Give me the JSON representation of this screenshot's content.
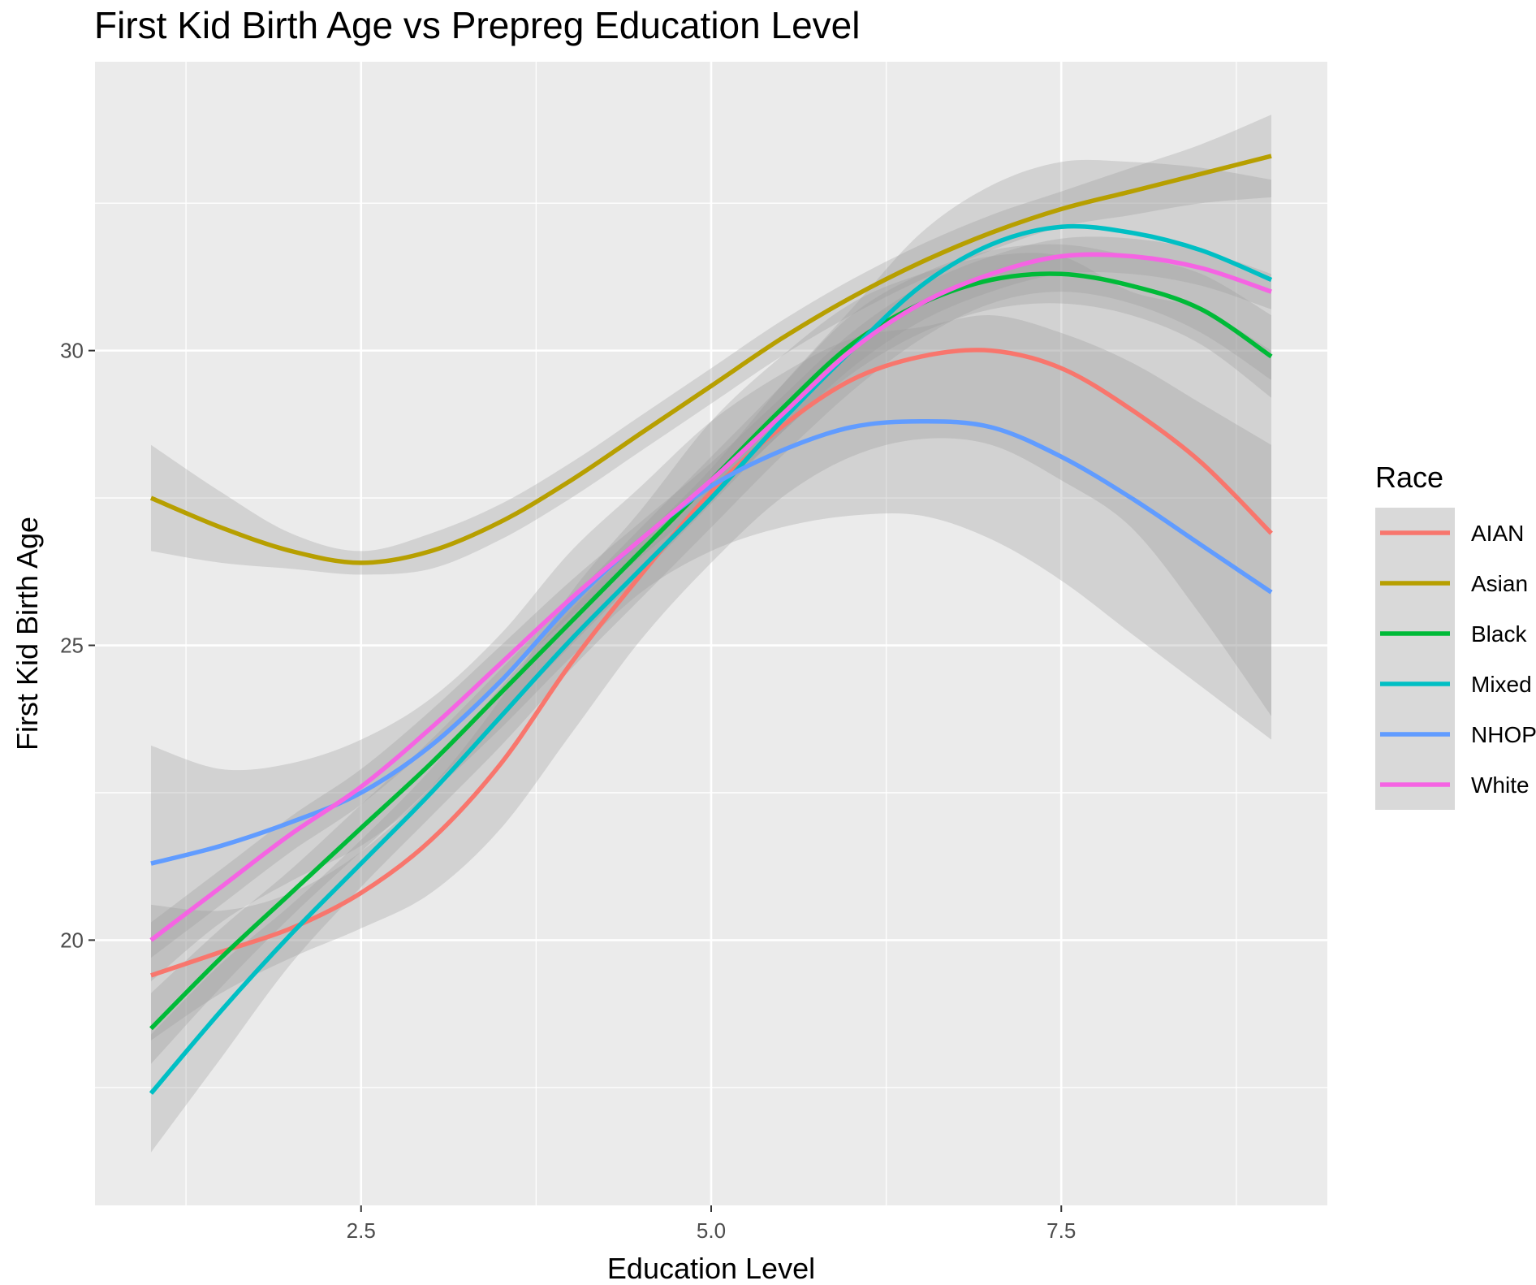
{
  "chart_data": {
    "type": "line",
    "title": "First Kid Birth Age vs Prepreg Education Level",
    "xlabel": "Education Level",
    "ylabel": "First Kid Birth Age",
    "xlim": [
      0.6,
      9.4
    ],
    "ylim": [
      15.5,
      34.9
    ],
    "x_ticks": [
      2.5,
      5.0,
      7.5
    ],
    "x_tick_labels": [
      "2.5",
      "5.0",
      "7.5"
    ],
    "y_ticks": [
      20,
      25,
      30
    ],
    "y_tick_labels": [
      "20",
      "25",
      "30"
    ],
    "x_minor": [
      1.25,
      3.75,
      6.25,
      8.75
    ],
    "y_minor": [
      17.5,
      22.5,
      27.5,
      32.5
    ],
    "grid": true,
    "legend_title": "Race",
    "legend_position": "right",
    "x": [
      1,
      1.5,
      2,
      2.5,
      3,
      3.5,
      4,
      4.5,
      5,
      5.5,
      6,
      6.5,
      7,
      7.5,
      8,
      8.5,
      9
    ],
    "series": [
      {
        "name": "AIAN",
        "color": "#F8766D",
        "values": [
          19.4,
          19.8,
          20.2,
          20.8,
          21.7,
          23.0,
          24.7,
          26.2,
          27.6,
          28.7,
          29.5,
          29.9,
          30.0,
          29.7,
          29.0,
          28.1,
          26.9
        ],
        "lower": [
          18.3,
          19.1,
          19.7,
          20.2,
          20.8,
          21.9,
          23.5,
          25.1,
          26.4,
          27.5,
          28.2,
          28.5,
          28.4,
          27.8,
          27.0,
          25.5,
          23.8
        ],
        "upper": [
          20.6,
          20.5,
          20.8,
          21.5,
          22.6,
          24.1,
          25.9,
          27.3,
          28.8,
          29.9,
          30.8,
          31.3,
          31.6,
          31.6,
          31.0,
          30.7,
          30.0
        ]
      },
      {
        "name": "Asian",
        "color": "#B79F00",
        "values": [
          27.5,
          27.0,
          26.6,
          26.4,
          26.6,
          27.1,
          27.8,
          28.6,
          29.4,
          30.2,
          30.9,
          31.5,
          32.0,
          32.4,
          32.7,
          33.0,
          33.3
        ],
        "lower": [
          26.6,
          26.4,
          26.3,
          26.2,
          26.3,
          26.8,
          27.5,
          28.3,
          29.1,
          29.9,
          30.6,
          31.2,
          31.7,
          32.1,
          32.3,
          32.5,
          32.6
        ],
        "upper": [
          28.4,
          27.6,
          26.9,
          26.6,
          26.9,
          27.4,
          28.1,
          28.9,
          29.7,
          30.5,
          31.2,
          31.8,
          32.3,
          32.7,
          33.1,
          33.5,
          34.0
        ]
      },
      {
        "name": "Black",
        "color": "#00BA38",
        "values": [
          18.5,
          19.7,
          20.8,
          21.9,
          23.0,
          24.2,
          25.4,
          26.6,
          27.8,
          29.0,
          30.1,
          30.8,
          31.2,
          31.3,
          31.1,
          30.7,
          29.9
        ],
        "lower": [
          17.9,
          19.2,
          20.4,
          21.5,
          22.6,
          23.8,
          25.0,
          26.2,
          27.4,
          28.6,
          29.6,
          30.3,
          30.7,
          30.8,
          30.6,
          30.1,
          29.2
        ],
        "upper": [
          19.1,
          20.2,
          21.2,
          22.3,
          23.4,
          24.6,
          25.8,
          27.0,
          28.2,
          29.4,
          30.6,
          31.3,
          31.7,
          31.8,
          31.6,
          31.3,
          30.6
        ]
      },
      {
        "name": "Mixed",
        "color": "#00BFC4",
        "values": [
          17.4,
          18.8,
          20.1,
          21.3,
          22.5,
          23.8,
          25.1,
          26.3,
          27.5,
          28.8,
          30.0,
          31.1,
          31.8,
          32.1,
          32.0,
          31.7,
          31.2
        ],
        "lower": [
          16.4,
          18.0,
          19.6,
          20.9,
          22.1,
          23.3,
          24.6,
          25.8,
          27.0,
          28.2,
          29.3,
          30.2,
          30.8,
          31.0,
          30.8,
          30.3,
          29.5
        ],
        "upper": [
          18.4,
          19.6,
          20.6,
          21.7,
          22.9,
          24.3,
          25.6,
          26.8,
          28.0,
          29.4,
          30.7,
          32.0,
          32.8,
          33.2,
          33.2,
          33.1,
          32.9
        ]
      },
      {
        "name": "NHOPI",
        "color": "#619CFF",
        "values": [
          21.3,
          21.6,
          22.0,
          22.5,
          23.3,
          24.4,
          25.7,
          26.8,
          27.7,
          28.3,
          28.7,
          28.8,
          28.7,
          28.2,
          27.5,
          26.7,
          25.9
        ],
        "lower": [
          19.3,
          20.3,
          21.0,
          21.6,
          22.5,
          23.6,
          24.8,
          25.9,
          26.6,
          27.0,
          27.2,
          27.2,
          26.8,
          26.1,
          25.2,
          24.3,
          23.4
        ],
        "upper": [
          23.3,
          22.9,
          23.0,
          23.4,
          24.1,
          25.2,
          26.6,
          27.7,
          28.8,
          29.6,
          30.2,
          30.4,
          30.6,
          30.3,
          29.8,
          29.1,
          28.4
        ]
      },
      {
        "name": "White",
        "color": "#F564E3",
        "values": [
          20.0,
          20.9,
          21.8,
          22.6,
          23.6,
          24.7,
          25.8,
          26.8,
          27.8,
          28.9,
          30.0,
          30.8,
          31.3,
          31.6,
          31.6,
          31.4,
          31.0
        ],
        "lower": [
          19.7,
          20.6,
          21.5,
          22.3,
          23.3,
          24.4,
          25.5,
          26.5,
          27.5,
          28.6,
          29.7,
          30.5,
          31.0,
          31.3,
          31.3,
          31.1,
          30.7
        ],
        "upper": [
          20.3,
          21.2,
          22.1,
          22.9,
          23.9,
          25.0,
          26.1,
          27.1,
          28.1,
          29.2,
          30.3,
          31.1,
          31.6,
          31.9,
          31.9,
          31.7,
          31.3
        ]
      }
    ]
  }
}
